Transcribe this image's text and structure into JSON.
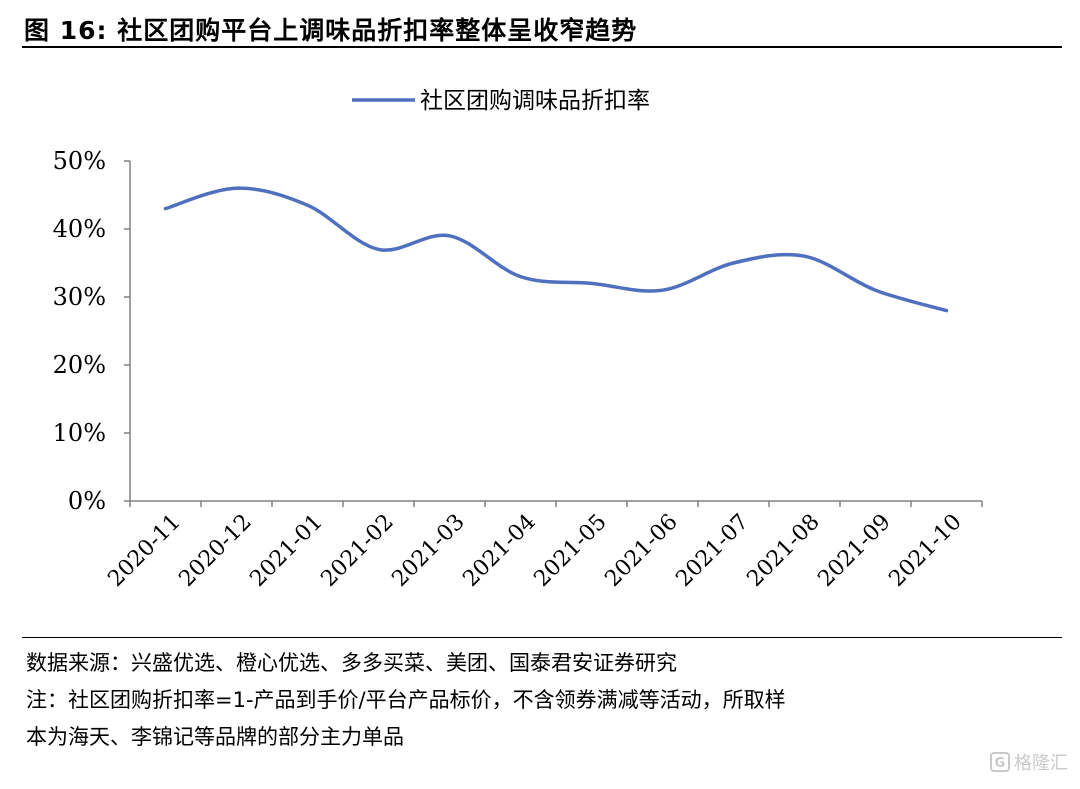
{
  "figure": {
    "title": "图 16:  社区团购平台上调味品折扣率整体呈收窄趋势"
  },
  "chart_data": {
    "type": "line",
    "categories": [
      "2020-11",
      "2020-12",
      "2021-01",
      "2021-02",
      "2021-03",
      "2021-04",
      "2021-05",
      "2021-06",
      "2021-07",
      "2021-08",
      "2021-09",
      "2021-10"
    ],
    "series": [
      {
        "name": "社区团购调味品折扣率",
        "values": [
          43,
          46,
          43.5,
          37,
          39,
          33,
          32,
          31,
          35,
          36,
          31,
          28
        ],
        "color": "#4F6FBF"
      }
    ],
    "y_ticks": [
      "0%",
      "10%",
      "20%",
      "30%",
      "40%",
      "50%"
    ],
    "ylim": [
      0,
      50
    ],
    "y_unit": "%",
    "legend_position": "top-center",
    "grid": false
  },
  "notes": {
    "source": "数据来源：兴盛优选、橙心优选、多多买菜、美团、国泰君安证券研究",
    "line2": "注：社区团购折扣率=1-产品到手价/平台产品标价，不含领券满减等活动，所取样",
    "line3": "本为海天、李锦记等品牌的部分主力单品"
  },
  "watermark": {
    "icon": "gelonghui-logo-icon",
    "text": "格隆汇"
  }
}
